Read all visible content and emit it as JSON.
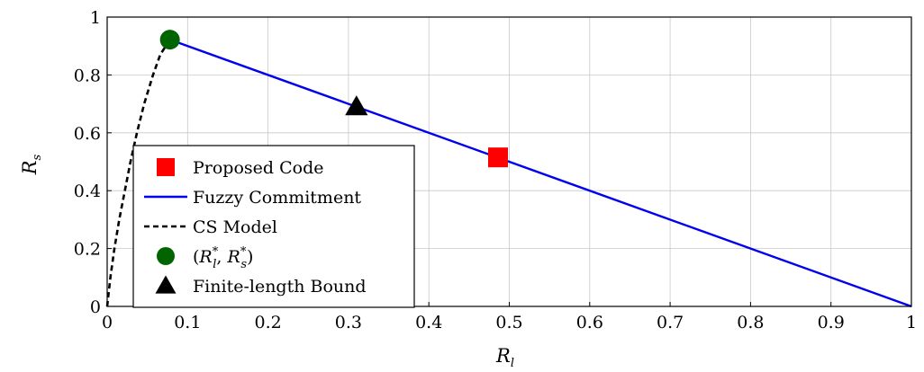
{
  "chart_data": {
    "type": "line",
    "xlabel": "R",
    "xlabel_sub": "l",
    "ylabel": "R",
    "ylabel_sub": "s",
    "xlim": [
      0,
      1
    ],
    "ylim": [
      0,
      1
    ],
    "grid": true,
    "legend_placement": "lower-left",
    "x_ticks": [
      0,
      0.1,
      0.2,
      0.3,
      0.4,
      0.5,
      0.6,
      0.7,
      0.8,
      0.9,
      1
    ],
    "y_ticks": [
      0,
      0.2,
      0.4,
      0.6,
      0.8,
      1
    ],
    "x_tick_labels": [
      "0",
      "0.1",
      "0.2",
      "0.3",
      "0.4",
      "0.5",
      "0.6",
      "0.7",
      "0.8",
      "0.9",
      "1"
    ],
    "y_tick_labels": [
      "0",
      "0.2",
      "0.4",
      "0.6",
      "0.8",
      "1"
    ],
    "series": [
      {
        "name": "Proposed Code",
        "kind": "marker",
        "marker": "square",
        "color": "#ff0000",
        "points": [
          [
            0.486,
            0.515
          ]
        ]
      },
      {
        "name": "Fuzzy Commitment",
        "kind": "line",
        "style": "solid",
        "color": "#0000ee",
        "points": [
          [
            0.078,
            0.922
          ],
          [
            1.0,
            0.0
          ]
        ]
      },
      {
        "name": "CS Model",
        "kind": "line",
        "style": "dashed",
        "color": "#000000",
        "points": [
          [
            0.0,
            0.0
          ],
          [
            0.004,
            0.1
          ],
          [
            0.009,
            0.2
          ],
          [
            0.015,
            0.3
          ],
          [
            0.022,
            0.4
          ],
          [
            0.029,
            0.5
          ],
          [
            0.037,
            0.6
          ],
          [
            0.046,
            0.7
          ],
          [
            0.057,
            0.8
          ],
          [
            0.066,
            0.87
          ],
          [
            0.078,
            0.922
          ]
        ]
      },
      {
        "name": "(R*_l, R*_s)",
        "legend_label": {
          "open": "(",
          "r1": "R",
          "r1_sub": "l",
          "r2": "R",
          "r2_sub": "s",
          "star": "*",
          "sep": ", ",
          "close": ")"
        },
        "kind": "marker",
        "marker": "circle",
        "color": "#006400",
        "points": [
          [
            0.078,
            0.922
          ]
        ]
      },
      {
        "name": "Finite-length Bound",
        "kind": "marker",
        "marker": "triangle",
        "color": "#000000",
        "points": [
          [
            0.31,
            0.69
          ]
        ]
      }
    ]
  }
}
